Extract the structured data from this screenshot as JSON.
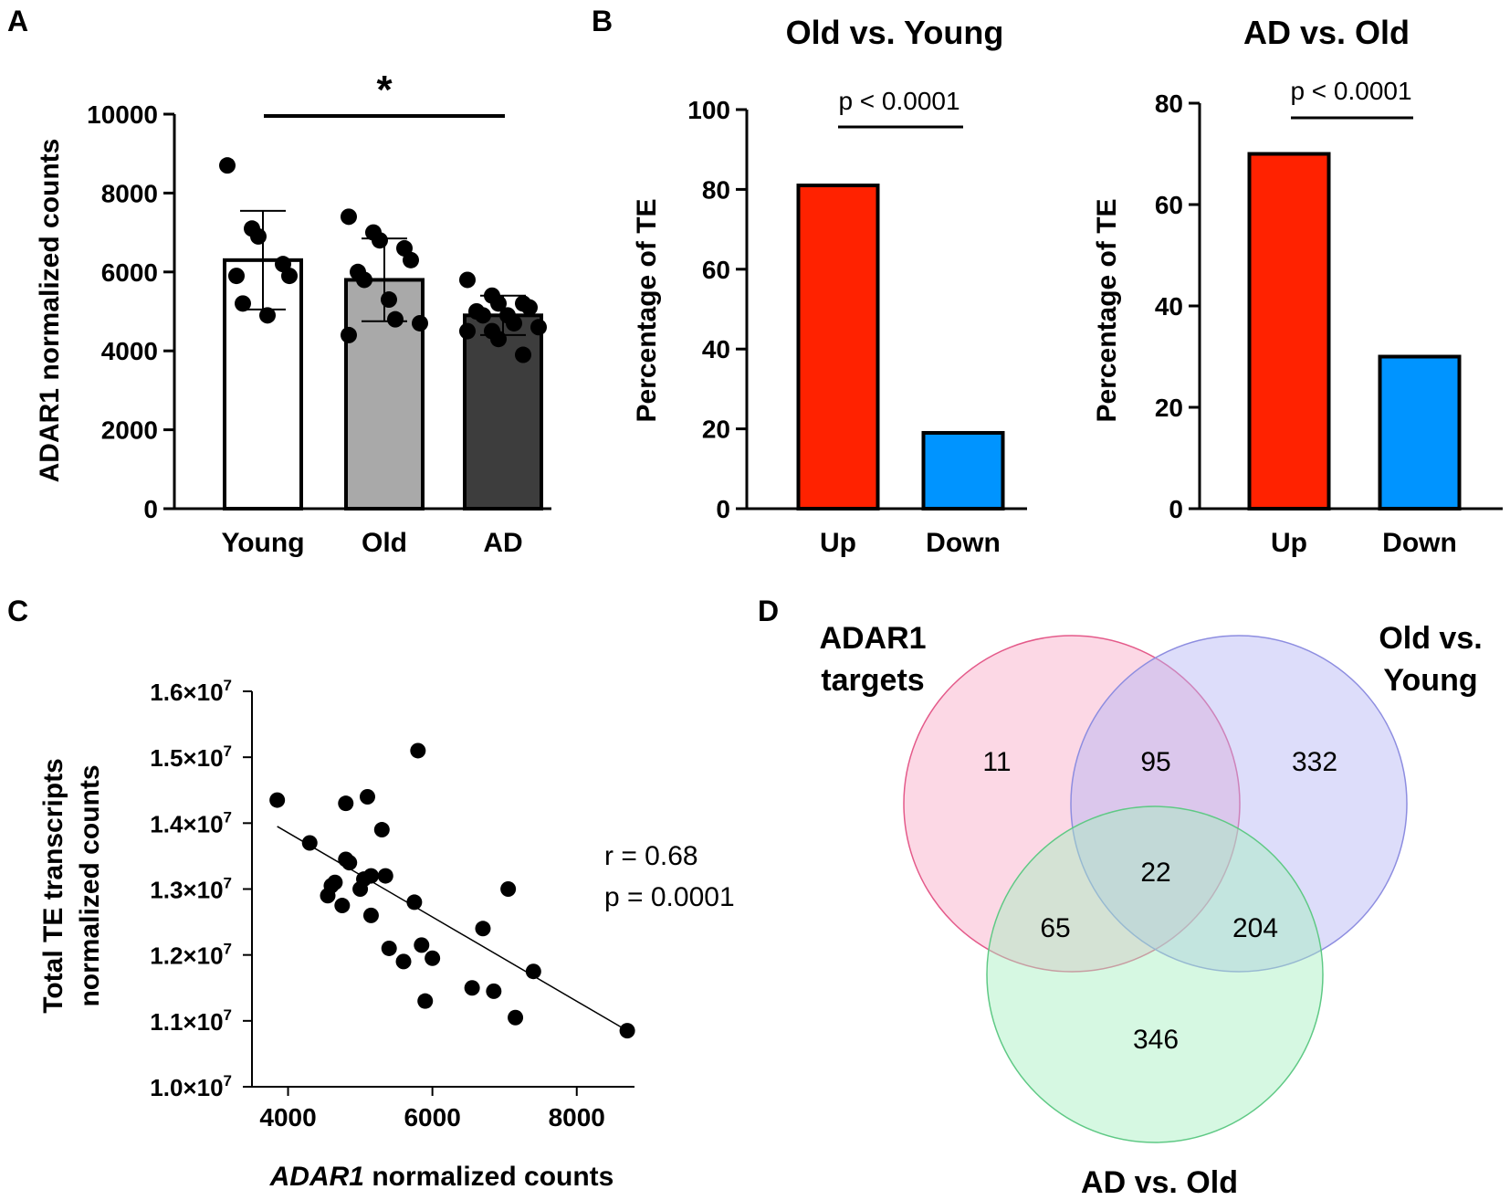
{
  "panel_letters": {
    "a": "A",
    "b": "B",
    "c": "C",
    "d": "D"
  },
  "chart_data": [
    {
      "panel": "A",
      "type": "bar",
      "title": "",
      "xlabel": "",
      "ylabel": "ADAR1 normalized counts",
      "ylim": [
        0,
        10000
      ],
      "yticks": [
        "0",
        "2000",
        "4000",
        "6000",
        "8000",
        "10000"
      ],
      "categories": [
        "Young",
        "Old",
        "AD"
      ],
      "values": [
        6300,
        5800,
        4900
      ],
      "sd": [
        1250,
        1050,
        500
      ],
      "bar_colors": [
        "#ffffff",
        "#a9a9a9",
        "#3d3d3d"
      ],
      "points": [
        [
          8700,
          7100,
          6900,
          6200,
          5900,
          5900,
          5200,
          4900
        ],
        [
          7400,
          7000,
          6800,
          6600,
          6300,
          6000,
          5800,
          5300,
          4800,
          4700,
          4400
        ],
        [
          5800,
          5400,
          5200,
          5200,
          5100,
          5000,
          4900,
          4900,
          4700,
          4600,
          4500,
          4500,
          4300,
          3900
        ]
      ],
      "significance": {
        "from": "Young",
        "to": "AD",
        "label": "*"
      }
    },
    {
      "panel": "B",
      "type": "bar",
      "title": "Old vs. Young",
      "xlabel": "",
      "ylabel": "Percentage of TE",
      "ylim": [
        0,
        100
      ],
      "yticks": [
        "0",
        "20",
        "40",
        "60",
        "80",
        "100"
      ],
      "categories": [
        "Up",
        "Down"
      ],
      "values": [
        81,
        19
      ],
      "bar_colors": [
        "#ff2200",
        "#0094ff"
      ],
      "significance": {
        "from": "Up",
        "to": "Down",
        "label": "p < 0.0001"
      }
    },
    {
      "panel": "B",
      "type": "bar",
      "title": "AD vs. Old",
      "xlabel": "",
      "ylabel": "Percentage of TE",
      "ylim": [
        0,
        80
      ],
      "yticks": [
        "0",
        "20",
        "40",
        "60",
        "80"
      ],
      "categories": [
        "Up",
        "Down"
      ],
      "values": [
        70,
        30
      ],
      "bar_colors": [
        "#ff2200",
        "#0094ff"
      ],
      "significance": {
        "from": "Up",
        "to": "Down",
        "label": "p < 0.0001"
      }
    },
    {
      "panel": "C",
      "type": "scatter",
      "title": "",
      "xlabel_italic": "ADAR1",
      "xlabel_rest": " normalized counts",
      "ylabel_line1": "Total TE transcripts",
      "ylabel_line2": "normalized counts",
      "xlim": [
        3500,
        8800
      ],
      "ylim": [
        10000000,
        16000000
      ],
      "xticks": [
        "4000",
        "6000",
        "8000"
      ],
      "xtick_values": [
        4000,
        6000,
        8000
      ],
      "ytick_values": [
        10000000,
        11000000,
        12000000,
        13000000,
        14000000,
        15000000,
        16000000
      ],
      "ytick_mantissas": [
        "1.0",
        "1.1",
        "1.2",
        "1.3",
        "1.4",
        "1.5",
        "1.6"
      ],
      "ytick_times": "×10",
      "ytick_exponent": "7",
      "x": [
        3850,
        4300,
        4550,
        4600,
        4650,
        4750,
        4800,
        4800,
        4850,
        5000,
        5050,
        5100,
        5150,
        5150,
        5300,
        5350,
        5400,
        5600,
        5750,
        5800,
        5850,
        5900,
        6000,
        6550,
        6700,
        6850,
        7050,
        7150,
        7400,
        8700
      ],
      "y": [
        14350000,
        13700000,
        12900000,
        13050000,
        13100000,
        12750000,
        13450000,
        14300000,
        13400000,
        13000000,
        13150000,
        14400000,
        12600000,
        13200000,
        13900000,
        13200000,
        12100000,
        11900000,
        12800000,
        15100000,
        12150000,
        11300000,
        11950000,
        11500000,
        12400000,
        11450000,
        13000000,
        11050000,
        11750000,
        10850000
      ],
      "trendline": {
        "x": [
          3850,
          8700
        ],
        "y": [
          13950000,
          10850000
        ]
      },
      "annotation_r": "r = 0.68",
      "annotation_p": "p = 0.0001"
    }
  ],
  "venn": {
    "sets": [
      {
        "label_line1": "ADAR1",
        "label_line2": "targets",
        "color": "#f7a3c0"
      },
      {
        "label_line1": "Old vs.",
        "label_line2": "Young",
        "color": "#b3b3f5"
      },
      {
        "label_line1": "AD vs. Old",
        "label_line2": "",
        "color": "#a3efbf"
      }
    ],
    "regions": {
      "only_adar1": "11",
      "adar1_old": "95",
      "only_old": "332",
      "all_three": "22",
      "adar1_ad": "65",
      "old_ad": "204",
      "only_ad": "346"
    }
  }
}
